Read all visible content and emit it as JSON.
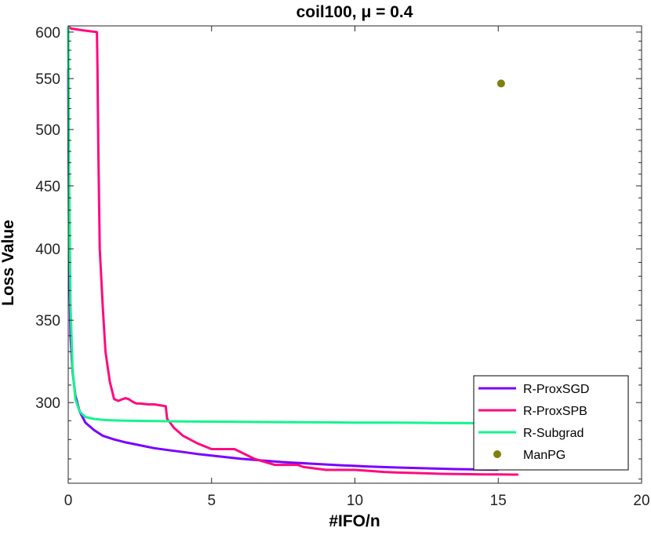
{
  "chart_data": {
    "type": "line",
    "title": "coil100, μ = 0.4",
    "xlabel": "#IFO/n",
    "ylabel": "Loss Value",
    "xlim": [
      0,
      20
    ],
    "ylim": [
      258,
      607
    ],
    "y_scale": "log",
    "x_ticks": [
      "0",
      "5",
      "10",
      "15",
      "20"
    ],
    "y_ticks": [
      "300",
      "350",
      "400",
      "450",
      "500",
      "550",
      "600"
    ],
    "grid": false,
    "legend_position": "bottom-right",
    "series": [
      {
        "name": "R-ProxSGD",
        "color": "#7a00ff",
        "x": [
          0,
          0.03,
          0.08,
          0.15,
          0.25,
          0.4,
          0.6,
          0.9,
          1.2,
          1.6,
          2.0,
          2.5,
          3.0,
          3.5,
          4.0,
          4.5,
          5.0,
          5.5,
          6.0,
          6.5,
          7.0,
          7.5,
          8.0,
          8.5,
          9.0,
          9.5,
          10.0,
          10.5,
          11.0,
          11.5,
          12.0,
          12.5,
          13.0,
          13.5,
          14.0,
          14.5,
          15.0
        ],
        "y": [
          560,
          400,
          340,
          318,
          304,
          295,
          289,
          285,
          282,
          280,
          278.5,
          277,
          275.5,
          274.5,
          273.5,
          272.5,
          271.7,
          270.9,
          270.1,
          269.5,
          268.9,
          268.4,
          268,
          267.6,
          267.2,
          266.8,
          266.5,
          266.2,
          265.9,
          265.7,
          265.5,
          265.3,
          265.1,
          264.9,
          264.8,
          264.7,
          264.6
        ]
      },
      {
        "name": "R-ProxSPB",
        "color": "#ff0a80",
        "x": [
          0,
          0.1,
          0.5,
          1.0,
          1.02,
          1.05,
          1.1,
          1.2,
          1.3,
          1.45,
          1.6,
          1.75,
          1.9,
          2.0,
          2.1,
          2.2,
          2.3,
          2.4,
          2.5,
          2.8,
          3.0,
          3.4,
          3.45,
          3.7,
          4.0,
          4.5,
          5.0,
          5.5,
          5.8,
          6.5,
          7.2,
          8.0,
          8.2,
          9.0,
          9.5,
          10.0,
          10.5,
          11.0,
          11.5,
          12.0,
          12.5,
          13.0,
          13.5,
          14.0,
          14.5,
          15.0,
          15.5,
          15.7
        ],
        "y": [
          606,
          604,
          602,
          600,
          560,
          480,
          400,
          360,
          330,
          312,
          302,
          301,
          302,
          302.5,
          302,
          301,
          300,
          299.5,
          299.5,
          299,
          299,
          298,
          291,
          286,
          282,
          278,
          275,
          275,
          275,
          270,
          267,
          267,
          266,
          264.5,
          264.5,
          264.5,
          264,
          263.5,
          263.2,
          263,
          262.8,
          262.6,
          262.5,
          262.4,
          262.3,
          262.3,
          262.2,
          262.2
        ]
      },
      {
        "name": "R-Subgrad",
        "color": "#14f58c",
        "x": [
          0,
          0.03,
          0.08,
          0.15,
          0.25,
          0.4,
          0.6,
          0.9,
          1.2,
          1.6,
          2.0,
          3.0,
          4.0,
          5.0,
          6.0,
          7.0,
          8.0,
          9.0,
          10.0,
          11.0,
          12.0,
          13.0,
          14.0,
          15.0,
          15.5
        ],
        "y": [
          606,
          460,
          360,
          320,
          302,
          295,
          292,
          291,
          290.5,
          290.2,
          290,
          289.8,
          289.6,
          289.5,
          289.4,
          289.3,
          289.2,
          289.1,
          289,
          289,
          288.9,
          288.8,
          288.7,
          288.6,
          288.6
        ]
      },
      {
        "name": "ManPG",
        "color": "#7f7f10",
        "marker": "dot",
        "x": [
          15.1
        ],
        "y": [
          545
        ]
      }
    ]
  }
}
